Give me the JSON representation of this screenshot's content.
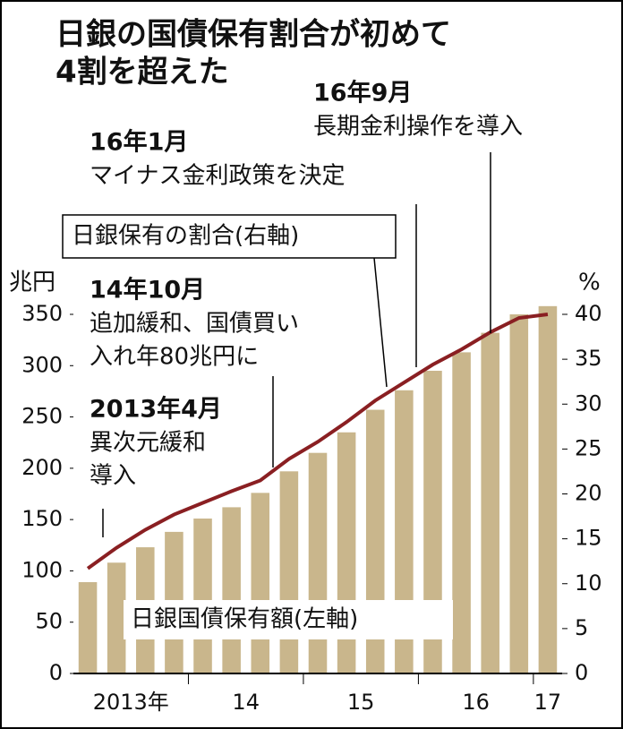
{
  "chart_data": {
    "type": "bar",
    "title": [
      "日銀の国債保有割合が初めて",
      "4割を超えた"
    ],
    "y_unit": "兆円",
    "y2_unit": "%",
    "categories": [
      "2013年",
      null,
      null,
      null,
      "14",
      null,
      null,
      null,
      "15",
      null,
      null,
      null,
      "16",
      null,
      null,
      null,
      "17"
    ],
    "series": [
      {
        "name": "日銀国債保有額(左軸)",
        "type": "bar",
        "axis": "y",
        "color": "#c9b68c",
        "values": [
          89,
          108,
          123,
          138,
          151,
          162,
          176,
          197,
          215,
          235,
          257,
          276,
          295,
          313,
          332,
          350,
          358
        ]
      },
      {
        "name": "日銀保有の割合(右軸)",
        "type": "line",
        "axis": "y2",
        "color": "#8a1f22",
        "values": [
          11.7,
          14,
          16,
          17.7,
          19,
          20.3,
          21.5,
          23.9,
          25.8,
          28,
          30.4,
          32.4,
          34.4,
          36.1,
          38,
          39.6,
          40
        ]
      }
    ],
    "ylim": [
      0,
      350
    ],
    "yticks": [
      0,
      50,
      100,
      150,
      200,
      250,
      300,
      350
    ],
    "y2lim": [
      0,
      40
    ],
    "y2ticks": [
      0,
      5,
      10,
      15,
      20,
      25,
      30,
      35,
      40
    ],
    "annotations": [
      {
        "title": "2013年4月",
        "text": [
          "異次元緩和",
          "導入"
        ]
      },
      {
        "title": "14年10月",
        "text": [
          "追加緩和、国債買い",
          "入れ年80兆円に"
        ]
      },
      {
        "title": "16年1月",
        "text": [
          "マイナス金利政策を決定"
        ]
      },
      {
        "title": "16年9月",
        "text": [
          "長期金利操作を導入"
        ]
      }
    ]
  }
}
